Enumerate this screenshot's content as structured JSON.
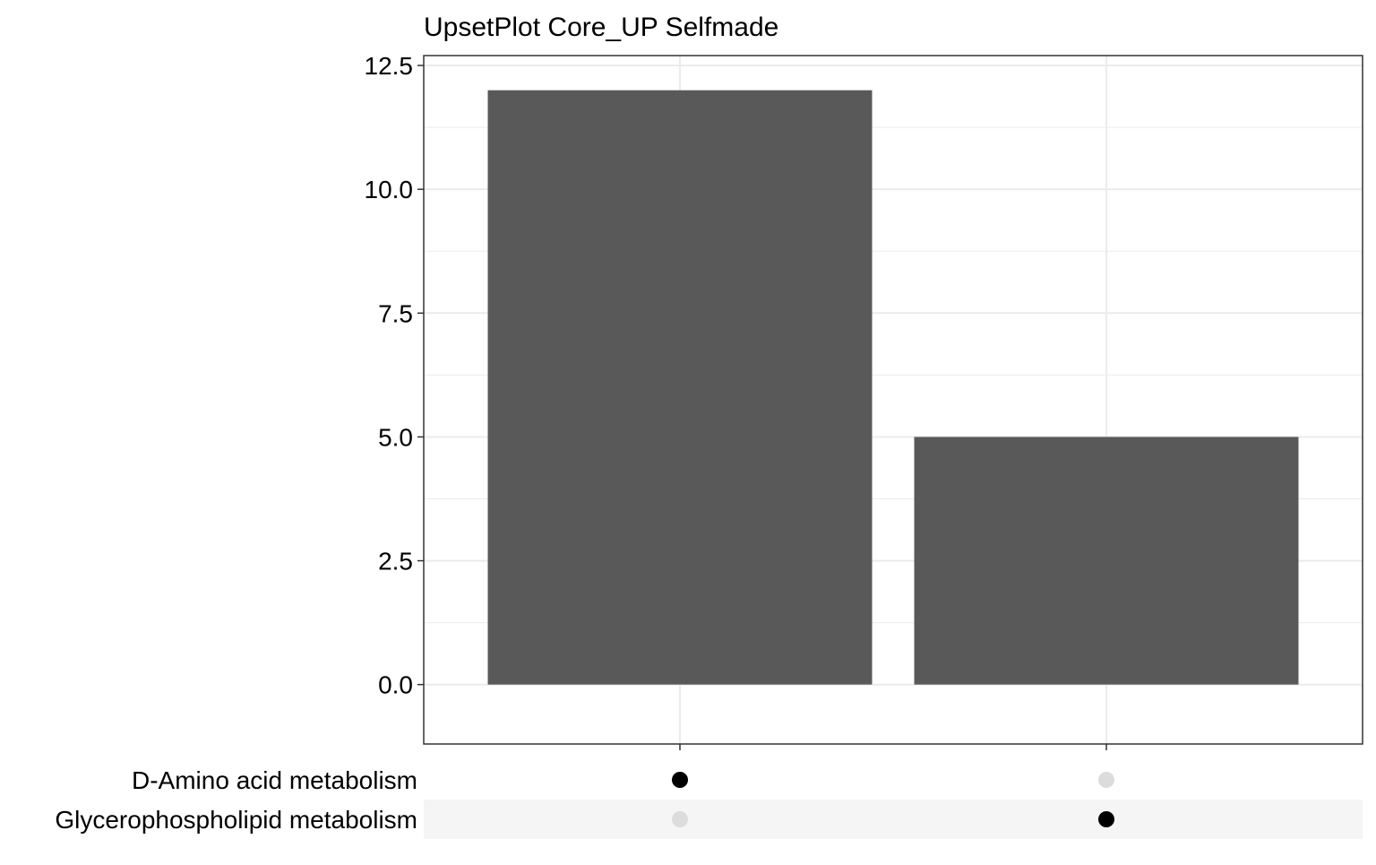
{
  "chart_data": {
    "type": "bar",
    "title": "UpsetPlot Core_UP Selfmade",
    "categories": [
      "D-Amino acid metabolism",
      "Glycerophospholipid metabolism"
    ],
    "values": [
      12,
      5
    ],
    "xlabel": "",
    "ylabel": "",
    "ylim": [
      -1.2,
      12.7
    ],
    "yticks": [
      {
        "value": 0,
        "label": "0.0"
      },
      {
        "value": 2.5,
        "label": "2.5"
      },
      {
        "value": 5,
        "label": "5.0"
      },
      {
        "value": 7.5,
        "label": "7.5"
      },
      {
        "value": 10,
        "label": "10.0"
      },
      {
        "value": 12.5,
        "label": "12.5"
      }
    ],
    "grid": true,
    "sets": [
      "D-Amino acid metabolism",
      "Glycerophospholipid metabolism"
    ],
    "intersections": [
      {
        "members": [
          "D-Amino acid metabolism"
        ],
        "count": 12
      },
      {
        "members": [
          "Glycerophospholipid metabolism"
        ],
        "count": 5
      }
    ],
    "colors": {
      "bar": "#595959",
      "dot_active": "#000000",
      "dot_inactive": "#DCDCDC",
      "grid": "#EBEBEB",
      "row_stripe": "#F5F5F5",
      "axis": "#333333"
    }
  }
}
